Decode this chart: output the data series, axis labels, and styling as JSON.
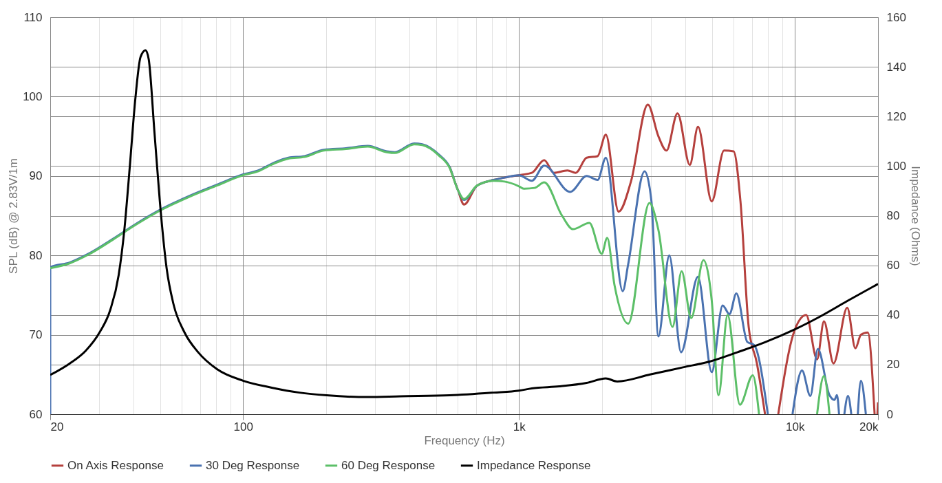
{
  "chart_data": {
    "type": "line",
    "xlabel": "Frequency (Hz)",
    "ylabel": "SPL (dB) @ 2.83V/1m",
    "y2label": "Impedance (Ohms)",
    "log": "x",
    "grid": true,
    "legend": "bottom",
    "line_style": "solid",
    "marker": "none",
    "xlim": [
      20,
      20000
    ],
    "xticks": [
      20,
      {
        "value": 30,
        "label": null
      },
      {
        "value": 40,
        "label": null
      },
      {
        "value": 50,
        "label": null
      },
      {
        "value": 60,
        "label": null
      },
      {
        "value": 70,
        "label": null
      },
      {
        "value": 80,
        "label": null
      },
      {
        "value": 90,
        "label": null
      },
      100,
      {
        "value": 200,
        "label": null
      },
      {
        "value": 300,
        "label": null
      },
      {
        "value": 400,
        "label": null
      },
      {
        "value": 500,
        "label": null
      },
      {
        "value": 600,
        "label": null
      },
      {
        "value": 700,
        "label": null
      },
      {
        "value": 800,
        "label": null
      },
      {
        "value": 900,
        "label": null
      },
      {
        "value": 1000,
        "label": "1k"
      },
      {
        "value": 2000,
        "label": null
      },
      {
        "value": 3000,
        "label": null
      },
      {
        "value": 4000,
        "label": null
      },
      {
        "value": 5000,
        "label": null
      },
      {
        "value": 6000,
        "label": null
      },
      {
        "value": 7000,
        "label": null
      },
      {
        "value": 8000,
        "label": null
      },
      {
        "value": 9000,
        "label": null
      },
      {
        "value": 10000,
        "label": "10k"
      },
      {
        "value": 20000,
        "label": "20k"
      }
    ],
    "ylim": [
      60,
      110
    ],
    "yticks": [
      60,
      70,
      80,
      90,
      100,
      110
    ],
    "y2lim": [
      0,
      160
    ],
    "y2ticks": [
      0,
      20,
      40,
      60,
      80,
      100,
      120,
      140,
      160
    ],
    "series": [
      {
        "name": "On Axis Response",
        "color": "#b5403d",
        "x": [
          561,
          601,
          632,
          705,
          809,
          886,
          1000,
          1113,
          1234,
          1337,
          1498,
          1605,
          1758,
          1927,
          2064,
          2296,
          2545,
          2930,
          3200,
          3424,
          3753,
          4160,
          4452,
          4995,
          5534,
          5994,
          6347,
          6797,
          7280,
          7790,
          8200,
          8700,
          9910,
          10980,
          12030,
          12740,
          13800,
          15470,
          16560,
          17340,
          18360,
          19440,
          19800,
          19900,
          20000
        ],
        "values": [
          91.1,
          88.2,
          86.4,
          88.8,
          89.5,
          89.8,
          90.1,
          90.4,
          92.0,
          90.4,
          90.7,
          90.4,
          92.3,
          92.5,
          95.2,
          85.5,
          89.3,
          99.0,
          95.0,
          93.2,
          97.9,
          91.4,
          96.2,
          86.8,
          93.2,
          93.1,
          86.8,
          71.0,
          66.4,
          60,
          null,
          60,
          70.3,
          72.5,
          66.9,
          71.7,
          66.4,
          73.4,
          68.3,
          70.0,
          70.3,
          60,
          null,
          60,
          61.5
        ]
      },
      {
        "name": "30 Deg Response",
        "color": "#4a72b0",
        "x": [
          20,
          20,
          23.5,
          27.5,
          33.8,
          40.6,
          51,
          64,
          80.4,
          100,
          113.6,
          130,
          146,
          167,
          196,
          236,
          283,
          332,
          355,
          417,
          446,
          512,
          561,
          601,
          632,
          705,
          809,
          886,
          1000,
          1113,
          1234,
          1533,
          1758,
          1927,
          2064,
          2376,
          2487,
          2852,
          3020,
          3200,
          3504,
          3866,
          4452,
          4995,
          5470,
          5790,
          6133,
          6720,
          7115,
          7976,
          8800,
          9800,
          10610,
          11370,
          12110,
          13340,
          13900,
          14200,
          14450,
          14800,
          15100,
          15570,
          16000,
          16500,
          16900,
          17340,
          18070
        ],
        "values": [
          60,
          78.5,
          79.1,
          80.2,
          82.1,
          83.9,
          85.9,
          87.5,
          88.9,
          90.2,
          90.7,
          91.7,
          92.3,
          92.5,
          93.3,
          93.5,
          93.8,
          93.1,
          93.0,
          94.1,
          94.0,
          92.7,
          91.1,
          88.2,
          87.0,
          88.8,
          89.5,
          89.8,
          90.1,
          89.4,
          91.3,
          88.0,
          90.0,
          89.5,
          92.3,
          75.5,
          78.9,
          90.6,
          86.8,
          69.8,
          80.0,
          67.8,
          77.3,
          65.3,
          73.7,
          72.6,
          75.2,
          69.1,
          68.7,
          60,
          null,
          60,
          65.5,
          62.3,
          68.2,
          62.4,
          61.8,
          62.4,
          60,
          null,
          60,
          62.3,
          60,
          null,
          60,
          64.2,
          60
        ]
      },
      {
        "name": "60 Deg Response",
        "color": "#5cbf68",
        "x": [
          20,
          23.5,
          27.5,
          33.8,
          40.6,
          51,
          64,
          80.4,
          100,
          113.6,
          130,
          146,
          167,
          196,
          236,
          283,
          332,
          355,
          417,
          446,
          512,
          561,
          601,
          632,
          705,
          809,
          886,
          1000,
          1040,
          1139,
          1234,
          1432,
          1569,
          1799,
          1994,
          2087,
          2220,
          2487,
          2970,
          3200,
          3601,
          3884,
          4207,
          4662,
          4995,
          5287,
          5700,
          6318,
          7035,
          7410,
          9000,
          12030,
          12740,
          13340
        ],
        "values": [
          78.4,
          79.0,
          80.1,
          82.0,
          83.8,
          85.8,
          87.4,
          88.8,
          90.1,
          90.6,
          91.6,
          92.2,
          92.4,
          93.2,
          93.4,
          93.7,
          93.0,
          92.9,
          94.0,
          93.9,
          92.6,
          91.0,
          88.2,
          87.1,
          88.8,
          89.4,
          89.3,
          88.7,
          88.4,
          88.5,
          89.2,
          85.0,
          83.3,
          84.1,
          80.2,
          82.2,
          76.2,
          71.4,
          86.6,
          83.2,
          71.0,
          78.0,
          72.1,
          79.4,
          74.3,
          62.4,
          72.5,
          61.2,
          64.9,
          60,
          null,
          60,
          64.8,
          60
        ]
      },
      {
        "name": "Impedance Response",
        "color": "#000000",
        "axis": "y2",
        "x": [
          20,
          23.5,
          26.9,
          30.2,
          33,
          35.4,
          37.1,
          38.8,
          40.6,
          42.5,
          44.3,
          45.5,
          47.7,
          49.9,
          52.8,
          55.9,
          61.3,
          68.7,
          80.6,
          100,
          127,
          160,
          201,
          283,
          372,
          561,
          809,
          1000,
          1113,
          1400,
          1758,
          2064,
          2270,
          2986,
          3930,
          4935,
          6200,
          7790,
          10000,
          12310,
          15470,
          20000
        ],
        "values": [
          15.8,
          20.4,
          25.6,
          33,
          42,
          56,
          74,
          99,
          126,
          144,
          146.7,
          143,
          114,
          86,
          59,
          44.5,
          33,
          25,
          18.1,
          13.5,
          10.7,
          8.7,
          7.6,
          6.9,
          7.2,
          7.6,
          8.7,
          9.5,
          10.4,
          11.2,
          12.6,
          14.4,
          13.2,
          16,
          18.9,
          21.3,
          25,
          29,
          34.2,
          39.3,
          45.6,
          52.5
        ]
      }
    ]
  }
}
